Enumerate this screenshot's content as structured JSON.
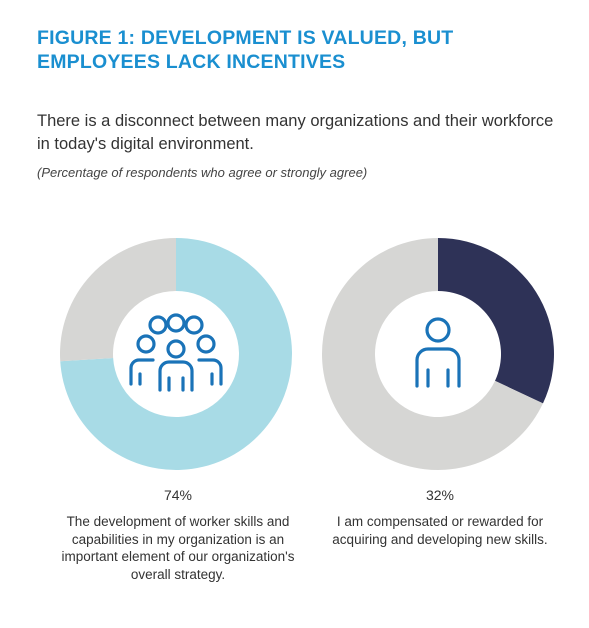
{
  "title_lines": [
    "FIGURE 1: DEVELOPMENT IS VALUED, BUT",
    "EMPLOYEES LACK INCENTIVES"
  ],
  "subtitle": "There is a disconnect between many organizations and their workforce in today's digital environment.",
  "note": "(Percentage of respondents who agree or strongly agree)",
  "colors": {
    "title": "#1a8fd0",
    "donut1_value": "#a8dbe6",
    "donut2_value": "#2e3257",
    "remainder": "#d6d6d4",
    "icon": "#1a73b8"
  },
  "icons": [
    "group-of-people-icon",
    "person-icon"
  ],
  "chart_data": [
    {
      "type": "pie",
      "variant": "donut",
      "values": [
        74,
        26
      ],
      "value_label": "74%",
      "caption": "The development of worker skills and capabilities in my organization is an important element of our organization's overall strategy."
    },
    {
      "type": "pie",
      "variant": "donut",
      "values": [
        32,
        68
      ],
      "value_label": "32%",
      "caption": "I am compensated or rewarded for acquiring and developing new skills."
    }
  ]
}
